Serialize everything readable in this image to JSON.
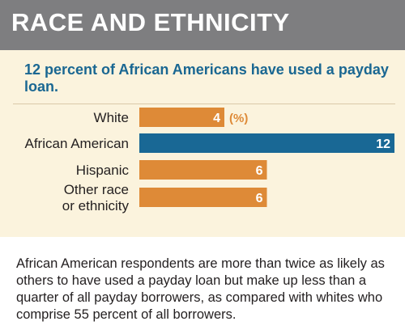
{
  "header": {
    "title": "RACE AND ETHNICITY"
  },
  "subtitle": "12 percent of African Americans have used a payday loan.",
  "caption": "African American respondents are more than twice as likely as others to have used a payday loan but make up less than a quarter of all payday borrowers, as compared with whites who comprise 55 percent of all borrowers.",
  "colors": {
    "default_bar": "#de8a37",
    "highlight_bar": "#196895",
    "value_label": "#ffffff",
    "unit_label": "#de8a37"
  },
  "chart_data": {
    "type": "bar",
    "orientation": "horizontal",
    "categories": [
      {
        "lines": [
          "White"
        ],
        "value": 4,
        "value_label": "4",
        "unit": "(%)",
        "highlight": false
      },
      {
        "lines": [
          "African American"
        ],
        "value": 12,
        "value_label": "12",
        "unit": "",
        "highlight": true
      },
      {
        "lines": [
          "Hispanic"
        ],
        "value": 6,
        "value_label": "6",
        "unit": "",
        "highlight": false
      },
      {
        "lines": [
          "Other race",
          "or ethnicity"
        ],
        "value": 6,
        "value_label": "6",
        "unit": "",
        "highlight": false
      }
    ],
    "xlim": [
      0,
      12
    ],
    "grid": false
  }
}
